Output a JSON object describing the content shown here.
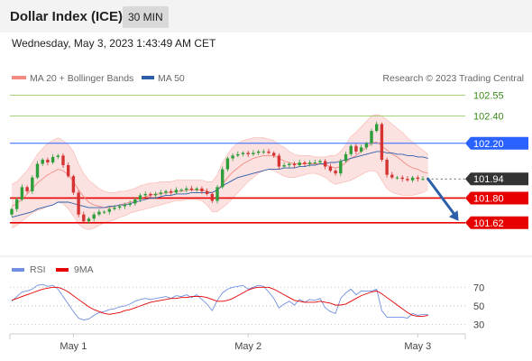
{
  "header": {
    "title": "Dollar Index (ICE)",
    "interval": "30 MIN",
    "timestamp": "Wednesday, May 3, 2023 1:43:49 AM CET"
  },
  "legend": {
    "ma20": "MA 20 + Bollinger Bands",
    "ma50": "MA 50",
    "credit": "Research © 2023 Trading Central",
    "rsi": "RSI",
    "rsi_ma": "9MA"
  },
  "colors": {
    "up": "#2e9e3a",
    "down": "#d63333",
    "band_fill": "#fbd7d7",
    "ma20": "#f28b82",
    "ma50": "#2d5ea8",
    "resistance_green": "#8bc34a",
    "resistance_blue": "#2962ff",
    "support_red": "#e60000",
    "current": "#333333",
    "arrow": "#2d5ea8",
    "rsi": "#6f8fe0",
    "rsi_ma": "#e60000"
  },
  "chart_data": [
    {
      "type": "candlestick",
      "x_labels": [
        "May 1",
        "May 2",
        "May 3"
      ],
      "x_label_index": [
        12,
        46,
        79
      ],
      "ylim": [
        101.5,
        102.62
      ],
      "levels": [
        {
          "label": "102.55",
          "value": 102.55,
          "style": "green"
        },
        {
          "label": "102.40",
          "value": 102.4,
          "style": "green"
        },
        {
          "label": "102.20",
          "value": 102.2,
          "style": "blue"
        },
        {
          "label": "101.94",
          "value": 101.94,
          "style": "current"
        },
        {
          "label": "101.80",
          "value": 101.8,
          "style": "red"
        },
        {
          "label": "101.62",
          "value": 101.62,
          "style": "red"
        }
      ],
      "close": [
        101.72,
        101.79,
        101.88,
        101.85,
        101.95,
        102.05,
        102.08,
        102.06,
        102.1,
        102.11,
        102.04,
        101.96,
        101.84,
        101.68,
        101.63,
        101.65,
        101.68,
        101.7,
        101.7,
        101.72,
        101.73,
        101.74,
        101.75,
        101.76,
        101.79,
        101.82,
        101.83,
        101.82,
        101.83,
        101.84,
        101.85,
        101.84,
        101.86,
        101.86,
        101.87,
        101.86,
        101.87,
        101.85,
        101.83,
        101.78,
        101.88,
        102.01,
        102.09,
        102.11,
        102.12,
        102.13,
        102.12,
        102.13,
        102.14,
        102.14,
        102.13,
        102.11,
        102.03,
        102.04,
        102.05,
        102.04,
        102.06,
        102.05,
        102.06,
        102.06,
        102.07,
        102.03,
        102.0,
        101.98,
        102.07,
        102.12,
        102.18,
        102.14,
        102.17,
        102.2,
        102.29,
        102.34,
        102.08,
        101.97,
        101.95,
        101.95,
        101.94,
        101.93,
        101.95,
        101.94,
        101.94,
        101.94
      ],
      "bollinger_upper": [
        101.9,
        101.92,
        101.96,
        102.0,
        102.06,
        102.12,
        102.16,
        102.2,
        102.22,
        102.24,
        102.22,
        102.19,
        102.14,
        102.05,
        101.98,
        101.93,
        101.9,
        101.87,
        101.85,
        101.84,
        101.84,
        101.85,
        101.85,
        101.86,
        101.87,
        101.89,
        101.9,
        101.91,
        101.91,
        101.92,
        101.92,
        101.92,
        101.93,
        101.93,
        101.93,
        101.93,
        101.93,
        101.93,
        101.92,
        101.92,
        101.97,
        102.06,
        102.12,
        102.17,
        102.2,
        102.22,
        102.23,
        102.24,
        102.24,
        102.24,
        102.23,
        102.22,
        102.19,
        102.17,
        102.14,
        102.12,
        102.11,
        102.11,
        102.11,
        102.1,
        102.1,
        102.1,
        102.11,
        102.11,
        102.14,
        102.19,
        102.25,
        102.28,
        102.32,
        102.36,
        102.4,
        102.41,
        102.4,
        102.37,
        102.34,
        102.31,
        102.28,
        102.24,
        102.21,
        102.18,
        102.15,
        102.12
      ],
      "bollinger_lower": [
        101.58,
        101.6,
        101.63,
        101.66,
        101.69,
        101.71,
        101.72,
        101.74,
        101.75,
        101.77,
        101.76,
        101.72,
        101.67,
        101.61,
        101.58,
        101.57,
        101.58,
        101.6,
        101.62,
        101.63,
        101.64,
        101.66,
        101.67,
        101.69,
        101.7,
        101.71,
        101.72,
        101.73,
        101.74,
        101.75,
        101.76,
        101.77,
        101.78,
        101.78,
        101.79,
        101.79,
        101.79,
        101.78,
        101.75,
        101.7,
        101.7,
        101.73,
        101.76,
        101.8,
        101.84,
        101.88,
        101.92,
        101.95,
        101.98,
        102.0,
        102.01,
        102.0,
        101.98,
        101.96,
        101.95,
        101.95,
        101.96,
        101.97,
        101.98,
        101.98,
        101.97,
        101.95,
        101.92,
        101.9,
        101.91,
        101.92,
        101.93,
        101.95,
        101.97,
        101.99,
        102.0,
        101.99,
        101.93,
        101.87,
        101.84,
        101.83,
        101.82,
        101.82,
        101.82,
        101.83,
        101.84,
        101.86
      ],
      "ma20": [
        101.74,
        101.76,
        101.79,
        101.83,
        101.87,
        101.91,
        101.94,
        101.97,
        101.99,
        102.01,
        102.0,
        101.97,
        101.92,
        101.86,
        101.81,
        101.77,
        101.75,
        101.74,
        101.73,
        101.73,
        101.74,
        101.75,
        101.76,
        101.77,
        101.78,
        101.8,
        101.81,
        101.82,
        101.83,
        101.83,
        101.84,
        101.84,
        101.85,
        101.85,
        101.86,
        101.86,
        101.86,
        101.86,
        101.85,
        101.84,
        101.86,
        101.9,
        101.95,
        101.99,
        102.02,
        102.05,
        102.07,
        102.09,
        102.1,
        102.11,
        102.11,
        102.11,
        102.09,
        102.07,
        102.06,
        102.05,
        102.05,
        102.05,
        102.05,
        102.05,
        102.05,
        102.04,
        102.03,
        102.02,
        102.03,
        102.06,
        102.09,
        102.11,
        102.14,
        102.17,
        102.2,
        102.21,
        102.18,
        102.15,
        102.12,
        102.1,
        102.07,
        102.04,
        102.02,
        102.01,
        101.99,
        101.98
      ],
      "ma50": [
        101.66,
        101.67,
        101.68,
        101.69,
        101.7,
        101.72,
        101.73,
        101.74,
        101.75,
        101.77,
        101.77,
        101.77,
        101.76,
        101.75,
        101.74,
        101.73,
        101.73,
        101.73,
        101.73,
        101.74,
        101.74,
        101.75,
        101.75,
        101.76,
        101.77,
        101.78,
        101.79,
        101.8,
        101.8,
        101.81,
        101.82,
        101.82,
        101.83,
        101.83,
        101.83,
        101.84,
        101.84,
        101.84,
        101.84,
        101.84,
        101.86,
        101.89,
        101.91,
        101.93,
        101.95,
        101.96,
        101.97,
        101.98,
        101.99,
        102.0,
        102.01,
        102.01,
        102.01,
        102.02,
        102.02,
        102.02,
        102.03,
        102.03,
        102.04,
        102.04,
        102.05,
        102.05,
        102.06,
        102.06,
        102.07,
        102.08,
        102.09,
        102.1,
        102.11,
        102.12,
        102.13,
        102.14,
        102.14,
        102.13,
        102.13,
        102.12,
        102.12,
        102.11,
        102.11,
        102.1,
        102.1,
        102.09
      ],
      "arrow": {
        "from_index": 81,
        "from_value": 101.94,
        "to_index": 88,
        "to_value": 101.62
      }
    },
    {
      "type": "line",
      "title": "RSI",
      "ylim": [
        22,
        78
      ],
      "y_ticks": [
        70,
        50,
        30
      ],
      "series": [
        {
          "name": "RSI",
          "values": [
            55,
            60,
            65,
            66,
            68,
            72,
            73,
            71,
            72,
            68,
            60,
            52,
            44,
            37,
            35,
            36,
            40,
            43,
            44,
            46,
            47,
            49,
            50,
            52,
            55,
            57,
            58,
            57,
            58,
            59,
            60,
            58,
            61,
            60,
            62,
            59,
            62,
            57,
            52,
            45,
            56,
            64,
            68,
            70,
            71,
            72,
            68,
            70,
            72,
            71,
            65,
            58,
            48,
            52,
            55,
            51,
            57,
            54,
            57,
            56,
            58,
            48,
            44,
            42,
            58,
            64,
            68,
            62,
            66,
            66,
            66,
            68,
            45,
            38,
            38,
            38,
            38,
            37,
            42,
            40,
            41,
            41
          ]
        },
        {
          "name": "9MA",
          "values": [
            56,
            58,
            60,
            62,
            64,
            66,
            68,
            69,
            70,
            70,
            68,
            65,
            61,
            57,
            53,
            49,
            46,
            44,
            42,
            41,
            42,
            43,
            45,
            46,
            48,
            50,
            52,
            54,
            55,
            56,
            57,
            58,
            58,
            59,
            59,
            60,
            60,
            60,
            59,
            57,
            55,
            55,
            56,
            58,
            61,
            64,
            67,
            69,
            70,
            70,
            70,
            68,
            65,
            62,
            59,
            56,
            55,
            54,
            54,
            54,
            55,
            54,
            53,
            51,
            51,
            52,
            55,
            58,
            61,
            63,
            65,
            66,
            63,
            59,
            55,
            51,
            47,
            43,
            40,
            39,
            39,
            40
          ]
        }
      ]
    }
  ]
}
